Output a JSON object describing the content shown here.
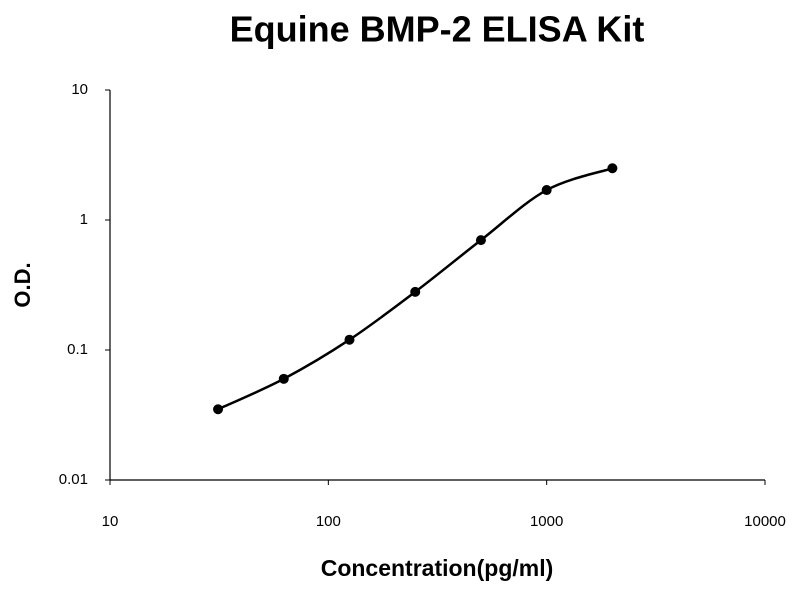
{
  "chart_data": {
    "type": "line",
    "title": "Equine BMP-2 ELISA Kit",
    "x_label": "Concentration(pg/ml)",
    "y_label": "O.D.",
    "x": [
      31.25,
      62.5,
      125,
      250,
      500,
      1000,
      2000
    ],
    "values": [
      0.035,
      0.06,
      0.12,
      0.28,
      0.7,
      1.7,
      2.5
    ],
    "color": "#000000",
    "markers": true,
    "smooth": true,
    "x_scale": "log",
    "y_scale": "log",
    "xlim": [
      10,
      10000
    ],
    "xticks": [
      10,
      100,
      1000,
      10000
    ],
    "ylim": [
      0.01,
      10
    ],
    "yticks": [
      0.01,
      0.1,
      1,
      10
    ]
  }
}
